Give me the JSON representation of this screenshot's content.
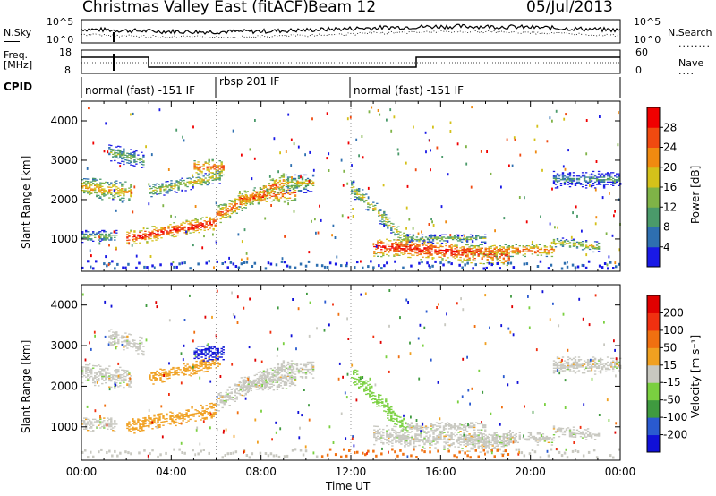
{
  "header": {
    "station": "Christmas Valley East (fitACF)",
    "beam": "Beam 12",
    "date": "05/Jul/2013"
  },
  "noise_panel": {
    "left_label": "N.Sky",
    "right_label": "N.Search",
    "left_ticks": [
      "10^5",
      "10^0"
    ],
    "right_ticks": [
      "10^5",
      "10^0"
    ]
  },
  "freq_panel": {
    "left_label_line1": "Freq.",
    "left_label_line2": "[MHz]",
    "right_label": "Nave",
    "left_ticks": [
      "18",
      "8"
    ],
    "right_ticks": [
      "60",
      "0"
    ]
  },
  "cpid_panel": {
    "label": "CPID",
    "segments": [
      {
        "text": "normal (fast) -151 IF",
        "start_h": 0,
        "end_h": 6
      },
      {
        "text": "rbsp 201 IF",
        "start_h": 6,
        "end_h": 12
      },
      {
        "text": "normal (fast) -151 IF",
        "start_h": 12,
        "end_h": 24
      }
    ]
  },
  "chart_data": [
    {
      "type": "heatmap",
      "parameter": "Power",
      "ylabel": "Slant Range [km]",
      "ylim": [
        180,
        4500
      ],
      "yticks": [
        1000,
        2000,
        3000,
        4000
      ],
      "xlim": [
        0,
        24
      ],
      "colorbar": {
        "label": "Power [dB]",
        "ticks": [
          4,
          8,
          12,
          16,
          20,
          24,
          28
        ],
        "colors": [
          "#1919e6",
          "#2e6fb0",
          "#4a9a6a",
          "#7fb347",
          "#d4c11a",
          "#f08a10",
          "#f04a10",
          "#f00000"
        ]
      }
    },
    {
      "type": "heatmap",
      "parameter": "Velocity",
      "ylabel": "Slant Range [km]",
      "ylim": [
        180,
        4500
      ],
      "yticks": [
        1000,
        2000,
        3000,
        4000
      ],
      "xlim": [
        0,
        24
      ],
      "xlabel": "Time UT",
      "xticks": [
        "00:00",
        "04:00",
        "08:00",
        "12:00",
        "16:00",
        "20:00",
        "00:00"
      ],
      "colorbar": {
        "label": "Velocity [m s⁻¹]",
        "ticks": [
          200,
          100,
          50,
          15,
          -15,
          -50,
          -100,
          -200
        ],
        "colors": [
          "#1010d8",
          "#2a5ad0",
          "#3f9a3f",
          "#7ad040",
          "#c8c8c0",
          "#f0a020",
          "#f07010",
          "#f03010",
          "#e00000"
        ]
      }
    }
  ]
}
